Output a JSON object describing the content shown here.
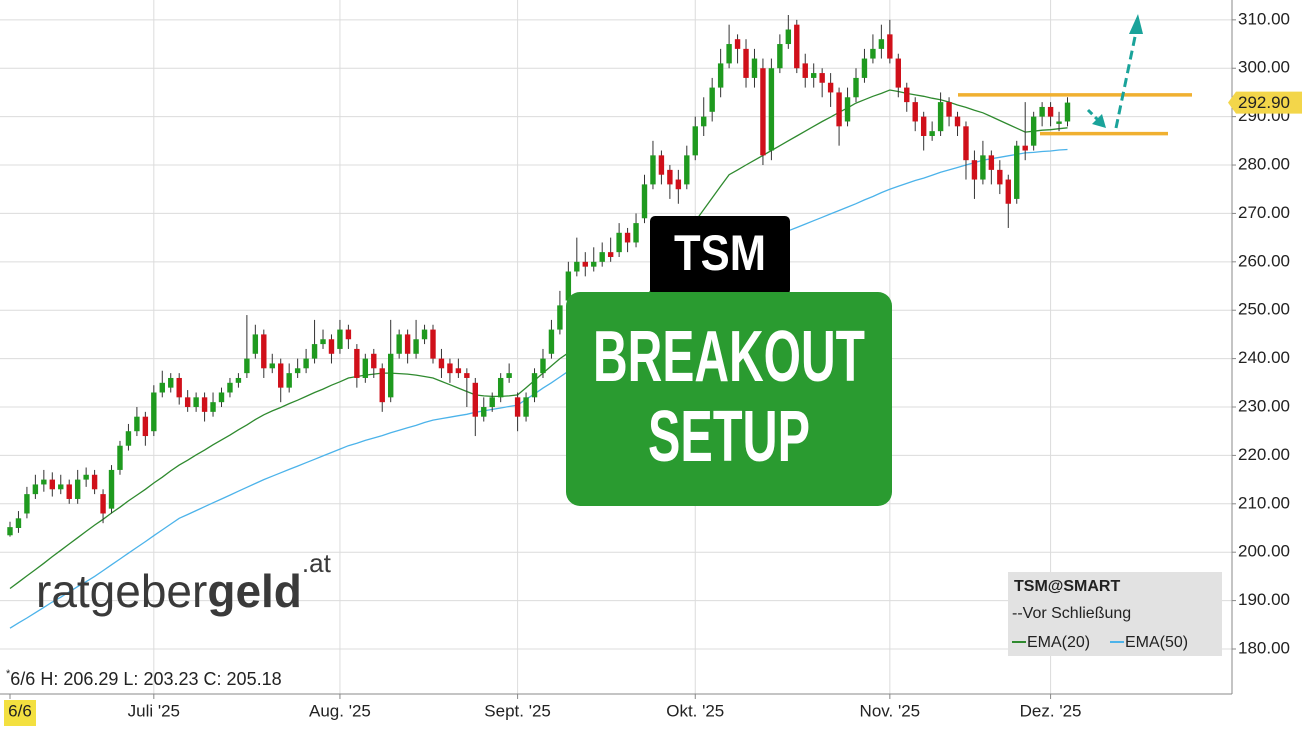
{
  "chart_data": {
    "type": "candlestick",
    "categories": [
      "6/6",
      null,
      null,
      null,
      null,
      null,
      null,
      null,
      null,
      null,
      null,
      null,
      null,
      null,
      null,
      null,
      null,
      "Juli '25",
      null,
      null,
      null,
      null,
      null,
      null,
      null,
      null,
      null,
      null,
      null,
      null,
      null,
      null,
      null,
      null,
      null,
      null,
      null,
      null,
      null,
      "Aug. '25",
      null,
      null,
      null,
      null,
      null,
      null,
      null,
      null,
      null,
      null,
      null,
      null,
      null,
      null,
      null,
      null,
      null,
      null,
      null,
      null,
      "Sept. '25",
      null,
      null,
      null,
      null,
      null,
      null,
      null,
      null,
      null,
      null,
      null,
      null,
      null,
      null,
      null,
      null,
      null,
      null,
      null,
      null,
      "Okt. '25",
      null,
      null,
      null,
      null,
      null,
      null,
      null,
      null,
      null,
      null,
      null,
      null,
      null,
      null,
      null,
      null,
      null,
      null,
      null,
      null,
      null,
      null,
      "Nov. '25",
      null,
      null,
      null,
      null,
      null,
      null,
      null,
      null,
      null,
      null,
      null,
      null,
      null,
      null,
      null,
      null,
      null,
      null,
      "Dez. '25",
      null,
      null
    ],
    "open": [
      203.5,
      205,
      208,
      212,
      214,
      215,
      213,
      214,
      211,
      215,
      216,
      212,
      209,
      217,
      222,
      225,
      228,
      225,
      233,
      234,
      236,
      232,
      230,
      232,
      229,
      231,
      233,
      235,
      237,
      241,
      245,
      238,
      239,
      234,
      237,
      238,
      240,
      243,
      244,
      242,
      246,
      242,
      236,
      241,
      238,
      232,
      241,
      245,
      241,
      244,
      246,
      240,
      239,
      238,
      237,
      235,
      228,
      230,
      232,
      236,
      232,
      228,
      232,
      237,
      241,
      246,
      252,
      258,
      260,
      259,
      260,
      262,
      262,
      266,
      264,
      269,
      276,
      282,
      279,
      277,
      276,
      282,
      288,
      291,
      296,
      301,
      306,
      304,
      298,
      300,
      283,
      300,
      305,
      309,
      301,
      298,
      299,
      297,
      295,
      289,
      294,
      298,
      302,
      304,
      307,
      302,
      296,
      293,
      290,
      286,
      287,
      293,
      290,
      288,
      281,
      277,
      282,
      279,
      277,
      273,
      284,
      284,
      290,
      292,
      288.5,
      289
    ],
    "high": [
      206.29,
      208.5,
      213.5,
      216,
      217,
      216.5,
      216,
      215,
      217,
      217.5,
      217,
      213,
      218,
      223,
      226.5,
      230,
      229,
      234.5,
      237.5,
      237,
      237,
      233.5,
      233,
      233,
      233,
      234,
      236,
      237,
      249,
      247,
      246,
      241,
      240,
      239,
      240,
      242,
      248,
      246,
      245,
      248,
      247,
      243,
      241,
      242,
      239,
      248,
      246,
      246,
      248,
      247,
      247,
      242,
      240,
      240,
      238,
      236,
      232,
      233,
      237,
      239,
      233,
      233,
      238,
      242,
      248,
      254,
      260,
      265,
      262,
      263,
      264,
      265,
      268,
      267,
      270,
      278,
      285,
      283,
      280,
      279,
      284,
      290,
      294,
      298,
      304,
      309,
      307,
      306,
      304,
      302,
      302,
      307,
      311,
      310,
      303,
      301,
      300,
      299,
      296,
      296,
      300,
      304,
      307,
      309,
      310,
      303,
      297,
      294,
      291,
      289,
      295,
      294,
      291,
      289,
      283,
      285,
      283,
      281,
      278,
      285,
      293,
      291,
      293,
      293,
      291,
      294
    ],
    "low": [
      203.23,
      204,
      207,
      211,
      212.5,
      211.5,
      212,
      210,
      210,
      213.5,
      212,
      206,
      208,
      216,
      221,
      224,
      222,
      224,
      232,
      233,
      230.5,
      229,
      229,
      227,
      228,
      230,
      232,
      234,
      236,
      240,
      236,
      237,
      231,
      233,
      236,
      237,
      239,
      242,
      239,
      241,
      242,
      234,
      235,
      236,
      229,
      231,
      240,
      239,
      240,
      243,
      239,
      236,
      235,
      236,
      230,
      224,
      227,
      229,
      231,
      235,
      225,
      227,
      231,
      236,
      240,
      245,
      250,
      257,
      257,
      258,
      259,
      260,
      261,
      262,
      263,
      268,
      275,
      276,
      273,
      272,
      275,
      281,
      286,
      289,
      294,
      300,
      301,
      296,
      296,
      280,
      281,
      299,
      304,
      299,
      296,
      296,
      294,
      292,
      284,
      288,
      293,
      297,
      301,
      302,
      301,
      294,
      291,
      287,
      283,
      285,
      286,
      288,
      286,
      277,
      273,
      276,
      276,
      274,
      267,
      272,
      281,
      283,
      288,
      288,
      287,
      288
    ],
    "close": [
      205.18,
      207,
      212,
      214,
      215,
      213,
      214,
      211,
      215,
      216,
      213,
      208,
      217,
      222,
      225,
      228,
      224,
      233,
      235,
      236,
      232,
      230,
      232,
      229,
      231,
      233,
      235,
      236,
      240,
      245,
      238,
      239,
      234,
      237,
      238,
      240,
      243,
      244,
      241,
      246,
      244,
      236,
      240,
      238,
      231,
      241,
      245,
      241,
      244,
      246,
      240,
      238,
      237,
      237,
      236,
      228,
      230,
      232,
      236,
      237,
      228,
      232,
      237,
      240,
      246,
      251,
      258,
      260,
      259,
      260,
      262,
      261,
      266,
      264,
      268,
      276,
      282,
      278,
      276,
      275,
      282,
      288,
      290,
      296,
      301,
      305,
      304,
      298,
      302,
      282,
      300,
      305,
      308,
      300,
      298,
      299,
      297,
      295,
      288,
      294,
      298,
      302,
      304,
      306,
      302,
      296,
      293,
      289,
      286,
      287,
      293,
      290,
      288,
      281,
      277,
      282,
      279,
      276,
      272,
      284,
      283,
      290,
      292,
      290,
      289,
      292.9
    ],
    "up_color": "#1f9a1f",
    "down_color": "#d0101a",
    "ema": [
      {
        "name": "EMA(20)",
        "color": "#2f8a2f",
        "values": [
          192.5,
          193.8,
          195.1,
          196.4,
          197.7,
          199.1,
          200.4,
          201.7,
          203.0,
          204.3,
          205.6,
          206.8,
          208.1,
          209.3,
          210.6,
          211.8,
          213.0,
          214.3,
          215.5,
          216.8,
          218.0,
          219.0,
          220.1,
          221.1,
          222.2,
          223.2,
          224.2,
          225.3,
          226.3,
          227.4,
          228.4,
          229.2,
          229.9,
          230.7,
          231.4,
          232.2,
          233.0,
          233.7,
          234.5,
          235.2,
          236.0,
          236.3,
          236.6,
          236.8,
          237.0,
          237.0,
          236.9,
          236.8,
          236.6,
          236.3,
          236.0,
          235.3,
          234.6,
          233.9,
          233.2,
          232.5,
          232.3,
          232.2,
          232.2,
          232.3,
          232.5,
          234.0,
          235.5,
          237.0,
          238.5,
          240.0,
          241.2,
          242.4,
          243.6,
          244.8,
          246.0,
          247.2,
          248.4,
          249.6,
          250.8,
          252.0,
          254.8,
          257.6,
          260.4,
          263.2,
          266.0,
          268.4,
          270.8,
          273.2,
          275.6,
          278.0,
          279.0,
          280.0,
          281.0,
          282.0,
          283.0,
          284.0,
          285.0,
          286.0,
          287.0,
          288.0,
          289.0,
          289.9,
          290.9,
          291.8,
          292.8,
          293.5,
          294.2,
          294.8,
          295.5,
          295.2,
          294.8,
          294.5,
          294.2,
          293.8,
          293.5,
          293.0,
          292.4,
          291.9,
          291.3,
          290.8,
          290.0,
          289.2,
          288.4,
          287.6,
          286.8,
          287.0,
          287.2,
          287.3,
          287.5,
          287.7
        ]
      },
      {
        "name": "EMA(50)",
        "color": "#4cb3ea",
        "values": [
          184.3,
          185.4,
          186.4,
          187.5,
          188.6,
          189.7,
          190.7,
          191.8,
          192.9,
          193.9,
          195.0,
          196.2,
          197.4,
          198.6,
          199.8,
          201.0,
          202.2,
          203.4,
          204.6,
          205.8,
          207.0,
          207.8,
          208.6,
          209.4,
          210.2,
          211.0,
          211.8,
          212.6,
          213.4,
          214.2,
          215.0,
          215.7,
          216.4,
          217.1,
          217.8,
          218.5,
          219.2,
          219.9,
          220.6,
          221.3,
          222.0,
          222.5,
          223.1,
          223.6,
          224.1,
          224.7,
          225.2,
          225.7,
          226.2,
          226.8,
          227.3,
          227.6,
          227.9,
          228.2,
          228.5,
          228.9,
          229.2,
          229.5,
          229.8,
          230.1,
          230.4,
          231.6,
          232.7,
          233.9,
          235.0,
          236.2,
          237.4,
          238.5,
          239.7,
          240.8,
          242.0,
          243.1,
          244.2,
          245.3,
          246.4,
          247.5,
          248.6,
          249.7,
          250.8,
          251.9,
          253.0,
          254.2,
          255.4,
          256.6,
          257.8,
          259.0,
          260.2,
          261.4,
          262.6,
          263.8,
          265.0,
          265.7,
          266.4,
          267.1,
          267.8,
          268.5,
          269.2,
          269.9,
          270.6,
          271.3,
          272.0,
          272.8,
          273.5,
          274.3,
          275.0,
          275.6,
          276.2,
          276.8,
          277.3,
          277.9,
          278.5,
          279.0,
          279.5,
          280.0,
          280.5,
          281.0,
          281.3,
          281.6,
          281.9,
          282.2,
          282.5,
          282.6,
          282.8,
          282.9,
          283.1,
          283.2
        ]
      }
    ],
    "ylim": [
      170.7,
      314.1
    ],
    "yticks": [
      {
        "value": 180,
        "label": "180.00"
      },
      {
        "value": 190,
        "label": "190.00"
      },
      {
        "value": 200,
        "label": "200.00"
      },
      {
        "value": 210,
        "label": "210.00"
      },
      {
        "value": 220,
        "label": "220.00"
      },
      {
        "value": 230,
        "label": "230.00"
      },
      {
        "value": 240,
        "label": "240.00"
      },
      {
        "value": 250,
        "label": "250.00"
      },
      {
        "value": 260,
        "label": "260.00"
      },
      {
        "value": 270,
        "label": "270.00"
      },
      {
        "value": 280,
        "label": "280.00"
      },
      {
        "value": 290,
        "label": "290.00"
      },
      {
        "value": 300,
        "label": "300.00"
      },
      {
        "value": 310,
        "label": "310.00"
      }
    ],
    "grid": true,
    "last_price": {
      "value": 292.9,
      "label": "292.90"
    },
    "levels": [
      294.5,
      286.5
    ],
    "level_color": "#f0b030",
    "legend_title": "TSM@SMART",
    "legend_note": "--Vor Schließung",
    "info_marker": "*",
    "info_labels": [
      "H:",
      "L:",
      "C:"
    ]
  },
  "badge": {
    "ticker": "TSM",
    "lines": [
      "BREAKOUT",
      "SETUP"
    ]
  },
  "logo": {
    "light": "ratgeber",
    "bold": "geld",
    "suffix": ".at"
  }
}
